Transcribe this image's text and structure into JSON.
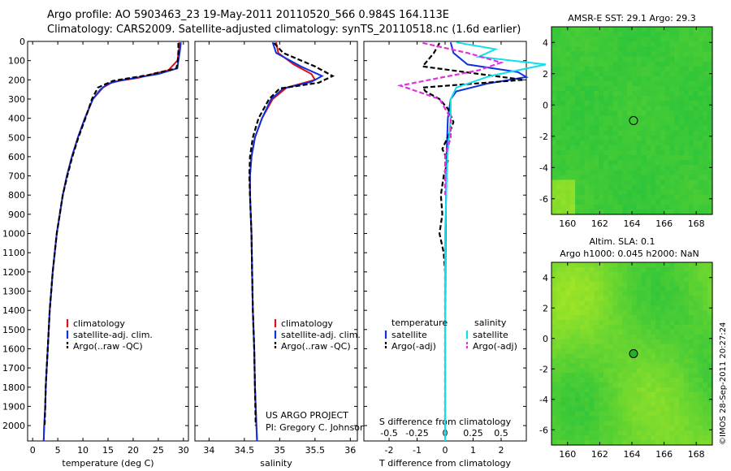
{
  "header": {
    "line1": "Argo profile: AO 5903463_23 19-May-2011 20110520_566 0.984S 164.113E",
    "line2": "Climatology: CARS2009. Satellite-adjusted climatology: synTS_20110518.nc (1.6d earlier)"
  },
  "credit": {
    "project": "US ARGO PROJECT",
    "pi": "PI: Gregory C. Johnson",
    "stamp": "©IMOS 28-Sep-2011 20:27:24"
  },
  "colors": {
    "climatology": "#e01010",
    "satellite": "#1030e0",
    "argo": "#000000",
    "sal_satellite": "#10e0e8",
    "sal_argo": "#e030e0",
    "map_green": "#2fc53a",
    "map_yellow": "#c8f020"
  },
  "chart_data": [
    {
      "type": "line",
      "id": "temperature",
      "xlabel": "temperature (deg C)",
      "ylabel": "",
      "xlim": [
        -1,
        31
      ],
      "ylim": [
        2080,
        0
      ],
      "xticks": [
        0,
        5,
        10,
        15,
        20,
        25,
        30
      ],
      "yticks": [
        0,
        100,
        200,
        300,
        400,
        500,
        600,
        700,
        800,
        900,
        1000,
        1100,
        1200,
        1300,
        1400,
        1500,
        1600,
        1700,
        1800,
        1900,
        2000
      ],
      "legend": [
        "climatology",
        "satellite-adj. clim.",
        "Argo(..raw -QC)"
      ],
      "series": [
        {
          "name": "climatology",
          "color": "#e01010",
          "points": [
            [
              29.2,
              5
            ],
            [
              29.1,
              50
            ],
            [
              28.8,
              100
            ],
            [
              27,
              150
            ],
            [
              21,
              190
            ],
            [
              16,
              210
            ],
            [
              14,
              240
            ],
            [
              12,
              300
            ],
            [
              10.4,
              400
            ],
            [
              9,
              500
            ],
            [
              7.8,
              600
            ],
            [
              6.8,
              700
            ],
            [
              6,
              800
            ],
            [
              5.4,
              900
            ],
            [
              4.8,
              1000
            ],
            [
              4.4,
              1100
            ],
            [
              4,
              1200
            ],
            [
              3.7,
              1300
            ],
            [
              3.4,
              1400
            ],
            [
              3.2,
              1500
            ],
            [
              3,
              1600
            ],
            [
              2.8,
              1700
            ],
            [
              2.6,
              1800
            ],
            [
              2.5,
              1900
            ],
            [
              2.3,
              2000
            ],
            [
              2.2,
              2080
            ]
          ]
        },
        {
          "name": "satellite-adj. clim.",
          "color": "#1030e0",
          "points": [
            [
              29.5,
              5
            ],
            [
              29.3,
              50
            ],
            [
              29,
              100
            ],
            [
              28.8,
              140
            ],
            [
              25,
              170
            ],
            [
              18,
              200
            ],
            [
              15,
              220
            ],
            [
              13.5,
              250
            ],
            [
              12,
              300
            ],
            [
              10.4,
              400
            ],
            [
              9,
              500
            ],
            [
              7.8,
              600
            ],
            [
              6.8,
              700
            ],
            [
              6,
              800
            ],
            [
              5.4,
              900
            ],
            [
              4.8,
              1000
            ],
            [
              4.4,
              1100
            ],
            [
              4,
              1200
            ],
            [
              3.7,
              1300
            ],
            [
              3.4,
              1400
            ],
            [
              3.2,
              1500
            ],
            [
              3,
              1600
            ],
            [
              2.8,
              1700
            ],
            [
              2.6,
              1800
            ],
            [
              2.5,
              1900
            ],
            [
              2.3,
              2000
            ],
            [
              2.2,
              2080
            ]
          ]
        },
        {
          "name": "Argo(..raw -QC)",
          "color": "#000000",
          "dashed": true,
          "points": [
            [
              29,
              8
            ],
            [
              29,
              50
            ],
            [
              28.9,
              100
            ],
            [
              28.6,
              140
            ],
            [
              23,
              175
            ],
            [
              16,
              205
            ],
            [
              13,
              240
            ],
            [
              11.8,
              300
            ],
            [
              10.5,
              400
            ],
            [
              9.1,
              500
            ],
            [
              7.9,
              600
            ],
            [
              6.9,
              700
            ],
            [
              6,
              800
            ],
            [
              5.4,
              900
            ],
            [
              4.8,
              1000
            ],
            [
              4.4,
              1100
            ],
            [
              4,
              1200
            ],
            [
              3.7,
              1300
            ],
            [
              3.4,
              1400
            ],
            [
              3.2,
              1500
            ],
            [
              3,
              1600
            ],
            [
              2.8,
              1700
            ],
            [
              2.6,
              1800
            ],
            [
              2.5,
              1900
            ],
            [
              2.4,
              2000
            ]
          ]
        }
      ]
    },
    {
      "type": "line",
      "id": "salinity",
      "xlabel": "salinity",
      "ylabel": "",
      "xlim": [
        33.8,
        36.1
      ],
      "ylim": [
        2080,
        0
      ],
      "xticks": [
        34,
        34.5,
        35,
        35.5,
        36
      ],
      "xticklabels": [
        "34",
        "34.5",
        "35",
        "35.5",
        "36"
      ],
      "legend": [
        "climatology",
        "satellite-adj. clim.",
        "Argo(..raw -QC)"
      ],
      "series": [
        {
          "name": "climatology",
          "color": "#e01010",
          "points": [
            [
              34.95,
              5
            ],
            [
              34.98,
              60
            ],
            [
              35.2,
              120
            ],
            [
              35.45,
              170
            ],
            [
              35.5,
              200
            ],
            [
              35.1,
              240
            ],
            [
              34.9,
              300
            ],
            [
              34.75,
              400
            ],
            [
              34.65,
              500
            ],
            [
              34.6,
              600
            ],
            [
              34.58,
              700
            ],
            [
              34.58,
              800
            ],
            [
              34.59,
              900
            ],
            [
              34.6,
              1000
            ],
            [
              34.61,
              1200
            ],
            [
              34.62,
              1400
            ],
            [
              34.64,
              1600
            ],
            [
              34.65,
              1800
            ],
            [
              34.67,
              2000
            ],
            [
              34.68,
              2080
            ]
          ]
        },
        {
          "name": "satellite-adj. clim.",
          "color": "#1030e0",
          "points": [
            [
              34.9,
              5
            ],
            [
              34.95,
              60
            ],
            [
              35.3,
              130
            ],
            [
              35.6,
              180
            ],
            [
              35.45,
              210
            ],
            [
              35.05,
              245
            ],
            [
              34.88,
              300
            ],
            [
              34.75,
              400
            ],
            [
              34.65,
              500
            ],
            [
              34.6,
              600
            ],
            [
              34.58,
              700
            ],
            [
              34.58,
              800
            ],
            [
              34.59,
              900
            ],
            [
              34.6,
              1000
            ],
            [
              34.61,
              1200
            ],
            [
              34.62,
              1400
            ],
            [
              34.64,
              1600
            ],
            [
              34.65,
              1800
            ],
            [
              34.67,
              2000
            ],
            [
              34.68,
              2080
            ]
          ]
        },
        {
          "name": "Argo(..raw -QC)",
          "color": "#000000",
          "dashed": true,
          "points": [
            [
              34.92,
              8
            ],
            [
              35.05,
              60
            ],
            [
              35.5,
              130
            ],
            [
              35.75,
              180
            ],
            [
              35.55,
              215
            ],
            [
              35.0,
              245
            ],
            [
              34.85,
              300
            ],
            [
              34.7,
              400
            ],
            [
              34.62,
              500
            ],
            [
              34.58,
              600
            ],
            [
              34.57,
              700
            ],
            [
              34.58,
              800
            ],
            [
              34.59,
              900
            ],
            [
              34.6,
              1000
            ],
            [
              34.61,
              1200
            ],
            [
              34.62,
              1400
            ],
            [
              34.64,
              1600
            ],
            [
              34.65,
              1800
            ],
            [
              34.66,
              2000
            ]
          ]
        }
      ]
    },
    {
      "type": "line",
      "id": "difference",
      "xlabel": "T difference from climatology",
      "x2label": "S difference from climatology",
      "xlim": [
        -2.9,
        2.9
      ],
      "ylim": [
        2080,
        0
      ],
      "xticks": [
        -2,
        -1,
        0,
        1,
        2
      ],
      "x2ticks": [
        -0.5,
        -0.25,
        0,
        0.25,
        0.5
      ],
      "x2ticklabels": [
        "-0.5",
        "-0.25",
        "0",
        "0.25",
        "0.5"
      ],
      "legend_temperature_title": "temperature",
      "legend_salinity_title": "salinity",
      "legend": [
        "satellite",
        "Argo(-adj)",
        "satellite",
        "Argo(-adj)"
      ],
      "series": [
        {
          "name": "satellite",
          "group": "temperature",
          "color": "#1030e0",
          "points": [
            [
              0.2,
              5
            ],
            [
              0.3,
              60
            ],
            [
              0.8,
              120
            ],
            [
              2.6,
              160
            ],
            [
              2.9,
              185
            ],
            [
              1.5,
              220
            ],
            [
              0.4,
              260
            ],
            [
              0.2,
              300
            ],
            [
              0.1,
              400
            ],
            [
              0.05,
              600
            ],
            [
              0.02,
              1000
            ],
            [
              0,
              1500
            ],
            [
              0,
              2080
            ]
          ]
        },
        {
          "name": "Argo(-adj)",
          "group": "temperature",
          "color": "#000000",
          "dashed": true,
          "points": [
            [
              -0.2,
              8
            ],
            [
              -0.4,
              60
            ],
            [
              -0.8,
              130
            ],
            [
              1.5,
              175
            ],
            [
              2.8,
              200
            ],
            [
              -0.8,
              240
            ],
            [
              -0.7,
              260
            ],
            [
              -0.2,
              300
            ],
            [
              0.1,
              350
            ],
            [
              0.3,
              420
            ],
            [
              0.15,
              480
            ],
            [
              -0.1,
              560
            ],
            [
              0.1,
              620
            ],
            [
              -0.05,
              700
            ],
            [
              -0.15,
              800
            ],
            [
              -0.1,
              900
            ],
            [
              -0.2,
              1000
            ],
            [
              -0.05,
              1100
            ],
            [
              0,
              1200
            ],
            [
              0,
              1500
            ],
            [
              0,
              2000
            ]
          ]
        },
        {
          "name": "satellite",
          "group": "salinity",
          "color": "#10e0e8",
          "points": [
            [
              0.1,
              5
            ],
            [
              0.45,
              40
            ],
            [
              0.3,
              80
            ],
            [
              0.9,
              120
            ],
            [
              0.4,
              180
            ],
            [
              0.1,
              240
            ],
            [
              0.05,
              300
            ],
            [
              0.05,
              400
            ],
            [
              0.02,
              600
            ],
            [
              0,
              1000
            ],
            [
              0,
              1500
            ],
            [
              0,
              2080
            ]
          ]
        },
        {
          "name": "Argo(-adj)",
          "group": "salinity",
          "color": "#e030e0",
          "dashed": true,
          "points": [
            [
              -0.2,
              8
            ],
            [
              0.2,
              60
            ],
            [
              0.5,
              110
            ],
            [
              0.3,
              150
            ],
            [
              -0.4,
              230
            ],
            [
              -0.05,
              300
            ],
            [
              0.05,
              400
            ],
            [
              0.05,
              500
            ],
            [
              0,
              600
            ],
            [
              0,
              800
            ]
          ]
        }
      ]
    },
    {
      "type": "heatmap",
      "id": "sst-map",
      "title": "AMSR-E SST: 29.1  Argo: 29.3",
      "xlim": [
        159,
        169
      ],
      "ylim": [
        -7,
        5
      ],
      "xticks": [
        160,
        162,
        164,
        166,
        168
      ],
      "yticks": [
        -6,
        -4,
        -2,
        0,
        2,
        4
      ],
      "marker": [
        164.1,
        -1.0
      ]
    },
    {
      "type": "heatmap",
      "id": "sla-map",
      "title": "Altim. SLA: 0.1",
      "subtitle": "Argo h1000: 0.045 h2000: NaN",
      "xlim": [
        159,
        169
      ],
      "ylim": [
        -7,
        5
      ],
      "xticks": [
        160,
        162,
        164,
        166,
        168
      ],
      "yticks": [
        -6,
        -4,
        -2,
        0,
        2,
        4
      ],
      "marker": [
        164.1,
        -1.0
      ]
    }
  ]
}
